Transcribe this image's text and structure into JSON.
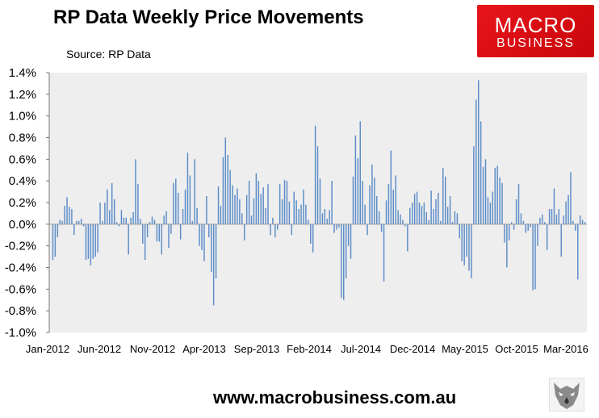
{
  "header": {
    "title": "RP Data Weekly Price Movements",
    "source": "Source: RP Data"
  },
  "logo": {
    "line1": "MACRO",
    "line2": "BUSINESS",
    "color": "#e8141b"
  },
  "footer": {
    "website": "www.macrobusiness.com.au",
    "emblem_icon": "wolf-head-icon"
  },
  "colors": {
    "bar": "#5b8cc8",
    "plot_bg": "#eeeeee",
    "axis": "#777777"
  },
  "chart_data": {
    "type": "bar",
    "title": "RP Data Weekly Price Movements",
    "xlabel": "",
    "ylabel": "",
    "ylim": [
      -1.0,
      1.4
    ],
    "y_ticks": [
      "-1.0%",
      "-0.8%",
      "-0.6%",
      "-0.4%",
      "-0.2%",
      "0.0%",
      "0.2%",
      "0.4%",
      "0.6%",
      "0.8%",
      "1.0%",
      "1.2%",
      "1.4%"
    ],
    "x_ticks": [
      "Jan-2012",
      "Jun-2012",
      "Nov-2012",
      "Apr-2013",
      "Sep-2013",
      "Feb-2014",
      "Jul-2014",
      "Dec-2014",
      "May-2015",
      "Oct-2015",
      "Mar-2016"
    ],
    "grid": false,
    "legend": "none",
    "frequency": "weekly",
    "series": [
      {
        "values": [
          -0.33,
          -0.3,
          -0.12,
          0.04,
          0.03,
          0.17,
          0.25,
          0.16,
          0.14,
          -0.1,
          0.03,
          0.03,
          0.05,
          -0.02,
          -0.33,
          -0.32,
          -0.38,
          -0.32,
          -0.3,
          -0.26,
          0.2,
          0.03,
          0.2,
          0.32,
          0.13,
          0.38,
          0.23,
          0.02,
          -0.02,
          0.13,
          0.06,
          0.06,
          -0.28,
          0.06,
          0.11,
          0.6,
          0.37,
          0.05,
          -0.18,
          -0.33,
          -0.12,
          0.02,
          0.07,
          0.04,
          -0.16,
          -0.16,
          -0.28,
          0.08,
          0.12,
          -0.22,
          -0.09,
          0.38,
          0.42,
          0.29,
          -0.14,
          0.14,
          0.32,
          0.66,
          0.45,
          0.03,
          0.6,
          0.15,
          -0.2,
          -0.24,
          -0.34,
          0.26,
          -0.12,
          -0.44,
          -0.75,
          -0.5,
          0.35,
          0.17,
          0.62,
          0.8,
          0.64,
          0.5,
          0.36,
          0.27,
          0.33,
          0.23,
          0.1,
          -0.15,
          0.27,
          0.4,
          0.08,
          0.24,
          0.47,
          0.4,
          0.28,
          0.34,
          0.15,
          0.37,
          -0.1,
          0.06,
          -0.12,
          -0.05,
          0.37,
          0.23,
          0.41,
          0.4,
          0.21,
          -0.1,
          0.3,
          0.22,
          0.14,
          0.18,
          0.32,
          0.18,
          0.04,
          -0.18,
          -0.26,
          0.91,
          0.72,
          0.42,
          0.1,
          0.14,
          0.05,
          0.13,
          0.4,
          -0.08,
          -0.05,
          -0.03,
          -0.68,
          -0.7,
          -0.5,
          -0.2,
          -0.32,
          0.44,
          0.82,
          0.61,
          0.95,
          0.4,
          0.18,
          -0.1,
          0.36,
          0.55,
          0.43,
          0.26,
          0.12,
          -0.07,
          -0.53,
          0.22,
          0.37,
          0.68,
          0.32,
          0.45,
          0.13,
          0.09,
          0.04,
          -0.02,
          -0.25,
          0.15,
          0.2,
          0.28,
          0.3,
          0.2,
          0.17,
          0.2,
          0.11,
          0.04,
          0.31,
          0.14,
          0.23,
          0.29,
          0.03,
          0.52,
          0.44,
          0.16,
          0.26,
          0.02,
          0.12,
          0.1,
          -0.13,
          -0.34,
          -0.38,
          -0.3,
          -0.43,
          -0.5,
          0.72,
          1.15,
          1.33,
          0.95,
          0.53,
          0.6,
          0.25,
          0.2,
          0.3,
          0.52,
          0.54,
          0.43,
          0.38,
          -0.17,
          -0.4,
          -0.15,
          0.02,
          -0.05,
          0.23,
          0.37,
          0.1,
          0.03,
          -0.08,
          -0.06,
          -0.03,
          -0.61,
          -0.6,
          -0.2,
          0.06,
          0.09,
          0.02,
          -0.24,
          0.14,
          0.14,
          0.33,
          0.09,
          0.14,
          -0.3,
          0.08,
          0.21,
          0.27,
          0.48,
          0.03,
          -0.06,
          -0.51,
          0.08,
          0.04,
          0.02
        ]
      }
    ]
  }
}
